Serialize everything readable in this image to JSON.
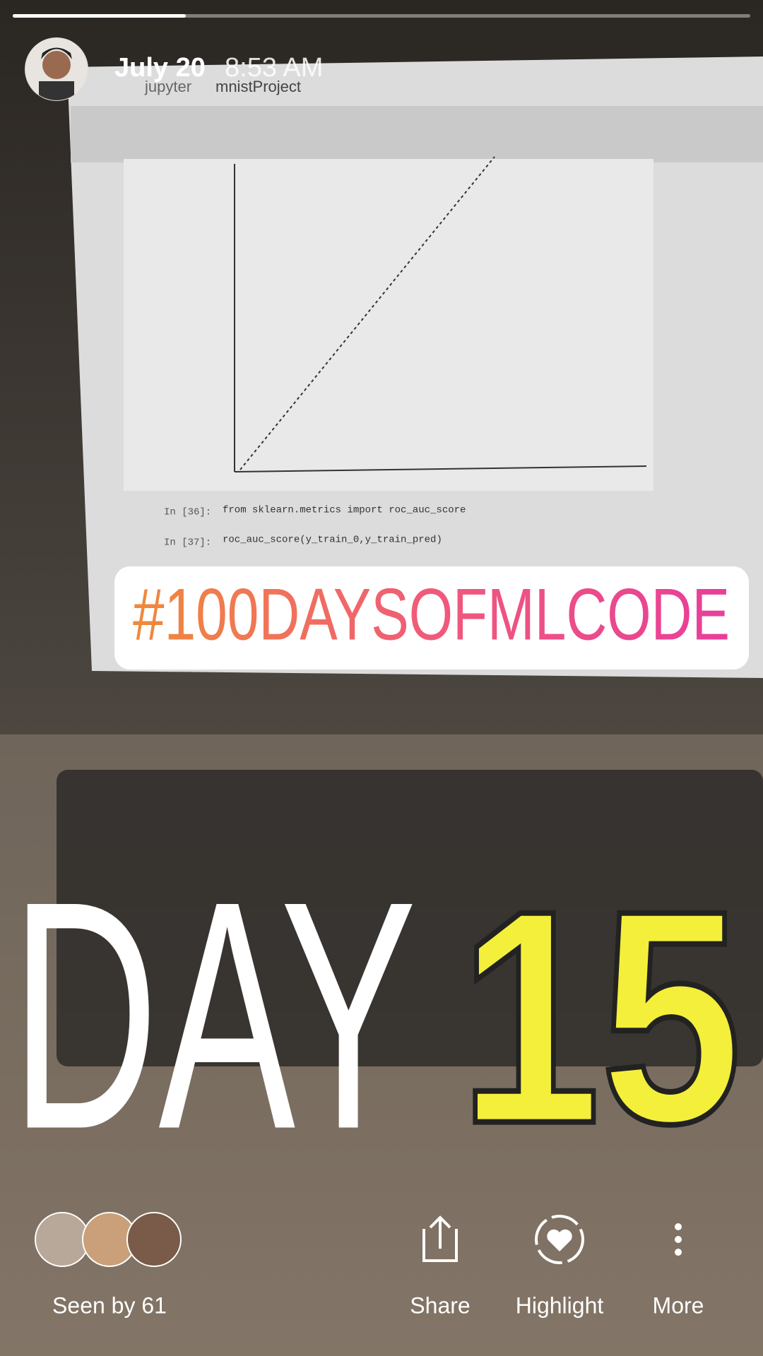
{
  "header": {
    "date": "July 20",
    "time": "8:53 AM"
  },
  "background_photo": {
    "app": "jupyter",
    "notebook": "mnistProject",
    "cells": [
      {
        "prompt": "In [36]:",
        "code": "from sklearn.metrics import roc_auc_score"
      },
      {
        "prompt": "In [37]:",
        "code": "roc_auc_score(y_train_0,y_train_pred)"
      }
    ]
  },
  "stickers": {
    "hashtag": "#100DAYSOFMLCODE",
    "day_word": "DAY",
    "day_number": "15"
  },
  "footer": {
    "seen_by": "Seen by 61",
    "actions": [
      "Share",
      "Highlight",
      "More"
    ]
  }
}
